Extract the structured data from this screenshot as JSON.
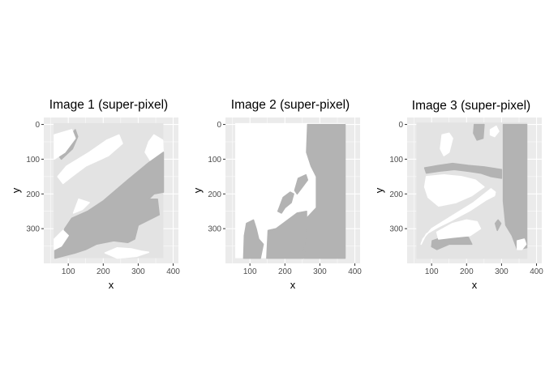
{
  "chart_data": [
    {
      "type": "heatmap",
      "title": "Image 1 (super-pixel)",
      "xlabel": "x",
      "ylabel": "y",
      "xlim": [
        30,
        415
      ],
      "ylim": [
        400,
        -20
      ],
      "y_reversed": true,
      "grid": true,
      "x_ticks": [
        100,
        200,
        300,
        400
      ],
      "y_ticks": [
        0,
        100,
        200,
        300
      ],
      "image_extent": {
        "x": [
          58,
          372
        ],
        "y": [
          -4,
          385
        ]
      },
      "classes": [
        "white",
        "gray"
      ],
      "colors": {
        "panel_bg": "#ebebeb",
        "grid": "#ffffff",
        "white": "#ffffff",
        "gray": "#b3b3b3"
      },
      "regions": [
        {
          "class": "gray",
          "points": [
            [
              120,
              15
            ],
            [
              127,
              35
            ],
            [
              112,
              70
            ],
            [
              80,
              100
            ],
            [
              70,
              85
            ],
            [
              92,
              50
            ]
          ]
        },
        {
          "class": "white",
          "points": [
            [
              245,
              30
            ],
            [
              255,
              55
            ],
            [
              215,
              90
            ],
            [
              150,
              120
            ],
            [
              110,
              150
            ],
            [
              85,
              170
            ],
            [
              70,
              150
            ],
            [
              95,
              120
            ],
            [
              160,
              80
            ],
            [
              210,
              45
            ]
          ]
        },
        {
          "class": "white",
          "points": [
            [
              60,
              30
            ],
            [
              110,
              15
            ],
            [
              120,
              40
            ],
            [
              90,
              80
            ],
            [
              60,
              100
            ]
          ]
        },
        {
          "class": "white",
          "points": [
            [
              345,
              30
            ],
            [
              370,
              45
            ],
            [
              372,
              100
            ],
            [
              345,
              120
            ],
            [
              320,
              80
            ],
            [
              330,
              50
            ]
          ]
        },
        {
          "class": "gray",
          "points": [
            [
              372,
              80
            ],
            [
              372,
              195
            ],
            [
              345,
              200
            ],
            [
              330,
              215
            ],
            [
              355,
              215
            ],
            [
              360,
              260
            ],
            [
              300,
              290
            ],
            [
              290,
              330
            ],
            [
              270,
              340
            ],
            [
              230,
              335
            ],
            [
              180,
              345
            ],
            [
              150,
              360
            ],
            [
              120,
              370
            ],
            [
              62,
              385
            ],
            [
              62,
              350
            ],
            [
              80,
              340
            ],
            [
              90,
              300
            ],
            [
              110,
              270
            ],
            [
              155,
              250
            ],
            [
              200,
              220
            ],
            [
              270,
              160
            ],
            [
              330,
              110
            ]
          ]
        },
        {
          "class": "white",
          "points": [
            [
              130,
              215
            ],
            [
              160,
              225
            ],
            [
              140,
              245
            ],
            [
              115,
              255
            ]
          ]
        },
        {
          "class": "white",
          "points": [
            [
              60,
              330
            ],
            [
              85,
              305
            ],
            [
              100,
              320
            ],
            [
              80,
              350
            ],
            [
              60,
              360
            ]
          ]
        },
        {
          "class": "white",
          "points": [
            [
              205,
              370
            ],
            [
              240,
              355
            ],
            [
              280,
              358
            ],
            [
              310,
              365
            ],
            [
              330,
              368
            ],
            [
              295,
              380
            ],
            [
              240,
              385
            ]
          ]
        }
      ]
    },
    {
      "type": "heatmap",
      "title": "Image 2 (super-pixel)",
      "xlabel": "x",
      "ylabel": "y",
      "xlim": [
        30,
        415
      ],
      "ylim": [
        400,
        -20
      ],
      "y_reversed": true,
      "grid": true,
      "x_ticks": [
        100,
        200,
        300,
        400
      ],
      "y_ticks": [
        0,
        100,
        200,
        300
      ],
      "image_extent": {
        "x": [
          58,
          372
        ],
        "y": [
          -4,
          385
        ]
      },
      "classes": [
        "white",
        "gray"
      ],
      "colors": {
        "panel_bg": "#ebebeb",
        "grid": "#ffffff",
        "white": "#ffffff",
        "gray": "#b3b3b3"
      },
      "regions": [
        {
          "class": "gray",
          "points": [
            [
              265,
              0
            ],
            [
              372,
              0
            ],
            [
              372,
              385
            ],
            [
              255,
              385
            ],
            [
              262,
              270
            ],
            [
              290,
              240
            ],
            [
              290,
              150
            ],
            [
              275,
              120
            ],
            [
              262,
              80
            ]
          ]
        },
        {
          "class": "gray",
          "points": [
            [
              195,
              285
            ],
            [
              235,
              255
            ],
            [
              262,
              250
            ],
            [
              262,
              285
            ],
            [
              252,
              385
            ],
            [
              148,
              385
            ],
            [
              152,
              305
            ],
            [
              175,
              300
            ]
          ]
        },
        {
          "class": "gray",
          "points": [
            [
              90,
              285
            ],
            [
              110,
              275
            ],
            [
              118,
              300
            ],
            [
              125,
              330
            ],
            [
              138,
              345
            ],
            [
              130,
              385
            ],
            [
              82,
              385
            ],
            [
              84,
              320
            ]
          ]
        },
        {
          "class": "gray",
          "points": [
            [
              195,
              210
            ],
            [
              215,
              195
            ],
            [
              225,
              200
            ],
            [
              218,
              225
            ],
            [
              200,
              240
            ],
            [
              190,
              255
            ],
            [
              180,
              250
            ]
          ]
        },
        {
          "class": "gray",
          "points": [
            [
              238,
              155
            ],
            [
              260,
              145
            ],
            [
              265,
              160
            ],
            [
              250,
              180
            ],
            [
              235,
              200
            ],
            [
              228,
              190
            ]
          ]
        }
      ]
    },
    {
      "type": "heatmap",
      "title": "Image 3 (super-pixel)",
      "xlabel": "x",
      "ylabel": "y",
      "xlim": [
        30,
        415
      ],
      "ylim": [
        400,
        -20
      ],
      "y_reversed": true,
      "grid": true,
      "x_ticks": [
        100,
        200,
        300,
        400
      ],
      "y_ticks": [
        0,
        100,
        200,
        300
      ],
      "image_extent": {
        "x": [
          58,
          372
        ],
        "y": [
          -4,
          385
        ]
      },
      "classes": [
        "white",
        "gray",
        "light"
      ],
      "colors": {
        "panel_bg": "#ebebeb",
        "grid": "#ffffff",
        "white": "#ffffff",
        "gray": "#b3b3b3",
        "light": "#e3e3e3"
      },
      "regions": [
        {
          "class": "light",
          "points": [
            [
              58,
              -4
            ],
            [
              372,
              -4
            ],
            [
              372,
              385
            ],
            [
              58,
              385
            ]
          ]
        },
        {
          "class": "gray",
          "points": [
            [
              305,
              0
            ],
            [
              372,
              0
            ],
            [
              372,
              355
            ],
            [
              345,
              360
            ],
            [
              330,
              320
            ],
            [
              312,
              290
            ],
            [
              305,
              220
            ]
          ]
        },
        {
          "class": "gray",
          "points": [
            [
              222,
              0
            ],
            [
              250,
              0
            ],
            [
              247,
              40
            ],
            [
              230,
              45
            ],
            [
              220,
              25
            ]
          ]
        },
        {
          "class": "gray",
          "points": [
            [
              80,
              125
            ],
            [
              120,
              118
            ],
            [
              160,
              112
            ],
            [
              205,
              118
            ],
            [
              250,
              122
            ],
            [
              300,
              130
            ],
            [
              300,
              155
            ],
            [
              270,
              150
            ],
            [
              240,
              140
            ],
            [
              205,
              135
            ],
            [
              165,
              130
            ],
            [
              120,
              135
            ],
            [
              85,
              140
            ]
          ]
        },
        {
          "class": "gray",
          "points": [
            [
              102,
              335
            ],
            [
              130,
              325
            ],
            [
              170,
              320
            ],
            [
              205,
              325
            ],
            [
              215,
              345
            ],
            [
              190,
              345
            ],
            [
              150,
              345
            ],
            [
              115,
              360
            ],
            [
              100,
              352
            ]
          ]
        },
        {
          "class": "gray",
          "points": [
            [
              282,
              285
            ],
            [
              290,
              275
            ],
            [
              298,
              285
            ],
            [
              288,
              305
            ]
          ]
        },
        {
          "class": "white",
          "points": [
            [
              130,
              30
            ],
            [
              150,
              25
            ],
            [
              160,
              40
            ],
            [
              150,
              80
            ],
            [
              135,
              90
            ],
            [
              125,
              70
            ]
          ]
        },
        {
          "class": "white",
          "points": [
            [
              85,
              150
            ],
            [
              135,
              145
            ],
            [
              185,
              150
            ],
            [
              225,
              160
            ],
            [
              250,
              180
            ],
            [
              215,
              205
            ],
            [
              170,
              225
            ],
            [
              120,
              235
            ],
            [
              90,
              210
            ],
            [
              80,
              180
            ]
          ]
        },
        {
          "class": "white",
          "points": [
            [
              270,
              185
            ],
            [
              282,
              195
            ],
            [
              280,
              205
            ],
            [
              255,
              218
            ],
            [
              210,
              248
            ],
            [
              160,
              275
            ],
            [
              120,
              295
            ],
            [
              85,
              315
            ],
            [
              70,
              345
            ],
            [
              75,
              330
            ],
            [
              100,
              300
            ],
            [
              140,
              275
            ],
            [
              180,
              250
            ],
            [
              220,
              225
            ]
          ]
        },
        {
          "class": "white",
          "points": [
            [
              115,
              310
            ],
            [
              160,
              285
            ],
            [
              200,
              275
            ],
            [
              230,
              280
            ],
            [
              240,
              300
            ],
            [
              210,
              320
            ],
            [
              160,
              325
            ],
            [
              120,
              330
            ]
          ]
        },
        {
          "class": "white",
          "points": [
            [
              268,
              15
            ],
            [
              285,
              5
            ],
            [
              292,
              20
            ],
            [
              280,
              35
            ],
            [
              268,
              30
            ]
          ]
        },
        {
          "class": "white",
          "points": [
            [
              345,
              335
            ],
            [
              365,
              330
            ],
            [
              370,
              345
            ],
            [
              358,
              360
            ],
            [
              345,
              360
            ]
          ]
        }
      ]
    }
  ]
}
